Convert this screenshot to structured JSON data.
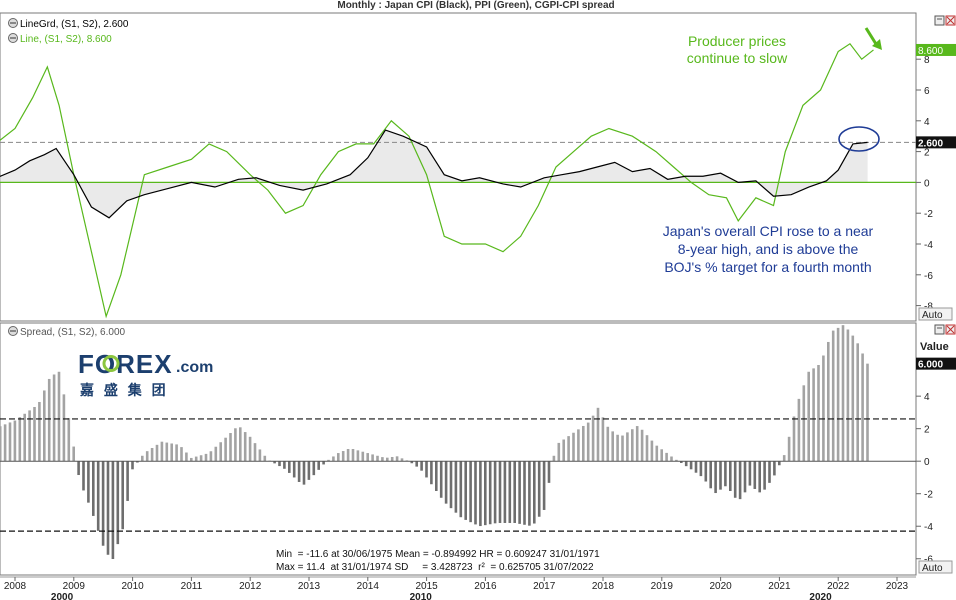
{
  "window": {
    "title": "Monthly : Japan CPI (Black), PPI (Green), CGPI-CPI spread"
  },
  "top_panel": {
    "legend": [
      {
        "label": "LineGrd, (S1, S2), 2.600",
        "color": "#000000"
      },
      {
        "label": "Line, (S1, S2), 8.600",
        "color": "#58b81c"
      }
    ],
    "last_value_badges": {
      "cpi": "2.600",
      "ppi": "8.600"
    },
    "auto_label": "Auto",
    "annotations": {
      "ppi_note": [
        "Producer prices",
        "continue to slow"
      ],
      "cpi_note": [
        "Japan's overall CPI rose to a near",
        "8-year high, and is above the",
        "BOJ's % target for a fourth month"
      ]
    }
  },
  "bottom_panel": {
    "legend": "Spread, (S1, S2), 6.000",
    "value_label": "Value",
    "last_value_badge": "6.000",
    "auto_label": "Auto",
    "logo": {
      "brand": "FOREX",
      "suffix": ".com",
      "chinese": "嘉 盛 集 团"
    },
    "stats": [
      "Min  = -11.6 at 30/06/1975 Mean = -0.894992 HR = 0.609247 31/01/1971",
      "Max = 11.4  at 31/01/1974 SD     = 3.428723  r²  = 0.625705 31/07/2022"
    ]
  },
  "colors": {
    "cpi": "#000000",
    "ppi": "#58b81c",
    "bar": "#9a9a9a",
    "annotation_blue": "#1f3c96",
    "annotation_green": "#58b81c"
  },
  "chart_data": [
    {
      "type": "line",
      "title": "Monthly : Japan CPI (Black), PPI (Green), CGPI-CPI spread",
      "ylim": [
        -9,
        11
      ],
      "yticks": [
        -8,
        -6,
        -4,
        -2,
        0,
        2,
        4,
        6,
        8
      ],
      "reference_line": 0,
      "grid": false,
      "legend_position": "top-left",
      "series": [
        {
          "name": "LineGrd, (S1, S2), 2.600",
          "color": "#000000",
          "x": [
            2007.5,
            2008.0,
            2008.25,
            2008.5,
            2008.7,
            2009.0,
            2009.3,
            2009.6,
            2009.9,
            2010.2,
            2010.6,
            2011.0,
            2011.4,
            2011.8,
            2012.1,
            2012.5,
            2012.9,
            2013.3,
            2013.7,
            2014.0,
            2014.3,
            2014.6,
            2015.0,
            2015.3,
            2015.6,
            2015.9,
            2016.3,
            2016.6,
            2017.0,
            2017.3,
            2017.6,
            2017.9,
            2018.2,
            2018.5,
            2018.8,
            2019.1,
            2019.4,
            2019.7,
            2020.0,
            2020.3,
            2020.6,
            2020.9,
            2021.2,
            2021.5,
            2021.8,
            2022.0,
            2022.25,
            2022.5
          ],
          "y": [
            0.0,
            0.8,
            1.4,
            1.8,
            2.2,
            0.5,
            -1.6,
            -2.3,
            -1.2,
            -0.8,
            -0.4,
            0.0,
            -0.3,
            0.2,
            0.3,
            -0.2,
            -0.5,
            -0.1,
            0.5,
            1.6,
            3.4,
            3.0,
            2.3,
            0.5,
            0.1,
            0.3,
            -0.1,
            -0.3,
            0.3,
            0.5,
            0.7,
            1.0,
            1.3,
            0.7,
            0.9,
            0.2,
            0.4,
            0.4,
            0.6,
            0.0,
            0.1,
            -0.9,
            -0.8,
            -0.3,
            0.1,
            0.8,
            2.5,
            2.6
          ]
        },
        {
          "name": "Line, (S1, S2), 8.600",
          "color": "#58b81c",
          "x": [
            2007.5,
            2008.0,
            2008.3,
            2008.55,
            2008.75,
            2009.0,
            2009.3,
            2009.55,
            2009.8,
            2010.2,
            2010.6,
            2011.0,
            2011.3,
            2011.6,
            2012.0,
            2012.3,
            2012.6,
            2012.9,
            2013.2,
            2013.5,
            2013.8,
            2014.1,
            2014.4,
            2014.7,
            2015.0,
            2015.3,
            2015.6,
            2016.0,
            2016.3,
            2016.6,
            2016.9,
            2017.2,
            2017.5,
            2017.8,
            2018.1,
            2018.5,
            2018.9,
            2019.2,
            2019.5,
            2019.8,
            2020.1,
            2020.3,
            2020.6,
            2020.9,
            2021.1,
            2021.4,
            2021.7,
            2022.0,
            2022.2,
            2022.4,
            2022.6
          ],
          "y": [
            2.0,
            3.5,
            5.5,
            7.5,
            5.0,
            0.5,
            -4.5,
            -8.7,
            -6.0,
            0.5,
            1.0,
            1.5,
            2.5,
            2.0,
            0.5,
            -0.5,
            -2.0,
            -1.5,
            0.5,
            2.0,
            2.5,
            2.5,
            4.0,
            3.0,
            0.5,
            -3.5,
            -4.0,
            -4.0,
            -4.5,
            -3.5,
            -1.5,
            1.0,
            2.0,
            3.0,
            3.5,
            3.0,
            2.0,
            1.0,
            0.0,
            -0.8,
            -1.0,
            -2.5,
            -1.0,
            -1.5,
            2.0,
            5.0,
            6.0,
            8.5,
            9.0,
            8.0,
            8.6
          ]
        }
      ]
    },
    {
      "type": "bar",
      "title": "Spread, (S1, S2), 6.000",
      "ylabel": "Value",
      "ylim": [
        -7,
        8.5
      ],
      "yticks": [
        -6,
        -4,
        -2,
        0,
        2,
        4
      ],
      "reference_lines": [
        2.6,
        -4.3
      ],
      "x": [
        2007.5,
        2008.0,
        2008.4,
        2008.6,
        2008.75,
        2008.9,
        2009.1,
        2009.3,
        2009.5,
        2009.65,
        2009.85,
        2010.0,
        2010.2,
        2010.5,
        2010.8,
        2011.0,
        2011.3,
        2011.6,
        2011.8,
        2012.0,
        2012.3,
        2012.6,
        2012.9,
        2013.1,
        2013.3,
        2013.5,
        2013.7,
        2014.0,
        2014.3,
        2014.5,
        2014.7,
        2014.9,
        2015.1,
        2015.3,
        2015.6,
        2015.9,
        2016.2,
        2016.5,
        2016.8,
        2017.0,
        2017.2,
        2017.4,
        2017.6,
        2017.8,
        2017.9,
        2018.1,
        2018.3,
        2018.6,
        2018.9,
        2019.2,
        2019.5,
        2019.7,
        2019.9,
        2020.1,
        2020.3,
        2020.5,
        2020.7,
        2020.9,
        2021.1,
        2021.3,
        2021.5,
        2021.7,
        2021.9,
        2022.1,
        2022.3,
        2022.5
      ],
      "values": [
        1.8,
        2.5,
        3.5,
        5.2,
        5.5,
        3.0,
        -1.2,
        -3.0,
        -5.2,
        -6.2,
        -4.0,
        -0.5,
        0.5,
        1.2,
        1.0,
        0.2,
        0.5,
        1.5,
        2.2,
        1.5,
        0.1,
        -0.5,
        -1.5,
        -0.8,
        0.0,
        0.5,
        0.8,
        0.5,
        0.2,
        0.3,
        0.0,
        -0.5,
        -1.5,
        -2.5,
        -3.5,
        -4.0,
        -3.8,
        -3.8,
        -4.0,
        -3.0,
        1.0,
        1.5,
        2.0,
        2.5,
        3.4,
        2.0,
        1.5,
        2.2,
        1.0,
        0.2,
        -0.5,
        -1.0,
        -2.0,
        -1.5,
        -2.5,
        -1.5,
        -2.0,
        -1.0,
        0.5,
        3.5,
        5.5,
        6.0,
        8.0,
        8.4,
        7.5,
        6.0
      ]
    }
  ],
  "x_axis": {
    "ticks": [
      "2008",
      "2009",
      "2010",
      "2011",
      "2012",
      "2013",
      "2014",
      "2015",
      "2016",
      "2017",
      "2018",
      "2019",
      "2020",
      "2021",
      "2022",
      "2023"
    ],
    "tick_years": [
      2008,
      2009,
      2010,
      2011,
      2012,
      2013,
      2014,
      2015,
      2016,
      2017,
      2018,
      2019,
      2020,
      2021,
      2022,
      2023
    ],
    "decades": [
      "2000",
      "2010",
      "2020"
    ],
    "decade_years": [
      2008.8,
      2014.9,
      2021.7
    ]
  }
}
